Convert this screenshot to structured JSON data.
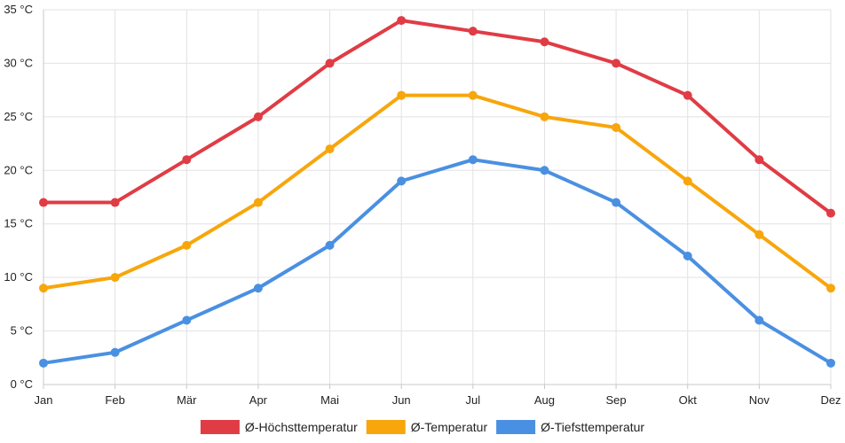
{
  "chart_data": {
    "type": "line",
    "title": "",
    "xlabel": "",
    "ylabel": "",
    "y_unit": "°C",
    "ylim": [
      0,
      35
    ],
    "y_ticks": [
      0,
      5,
      10,
      15,
      20,
      25,
      30,
      35
    ],
    "y_tick_labels": [
      "0 °C",
      "5 °C",
      "10 °C",
      "15 °C",
      "20 °C",
      "25 °C",
      "30 °C",
      "35 °C"
    ],
    "grid": true,
    "legend_position": "bottom",
    "categories": [
      "Jan",
      "Feb",
      "Mär",
      "Apr",
      "Mai",
      "Jun",
      "Jul",
      "Aug",
      "Sep",
      "Okt",
      "Nov",
      "Dez"
    ],
    "series": [
      {
        "name": "Ø-Höchsttemperatur",
        "color": "#e03c45",
        "values": [
          17,
          17,
          21,
          25,
          30,
          34,
          33,
          32,
          30,
          27,
          21,
          16
        ]
      },
      {
        "name": "Ø-Temperatur",
        "color": "#f7a60c",
        "values": [
          9,
          10,
          13,
          17,
          22,
          27,
          27,
          25,
          24,
          19,
          14,
          9
        ]
      },
      {
        "name": "Ø-Tiefsttemperatur",
        "color": "#4a90e2",
        "values": [
          2,
          3,
          6,
          9,
          13,
          19,
          21,
          20,
          17,
          12,
          6,
          2
        ]
      }
    ]
  }
}
